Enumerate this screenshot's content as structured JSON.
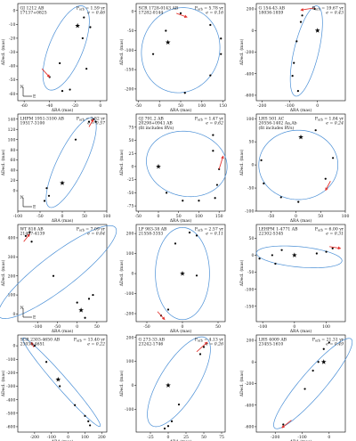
{
  "compass": {
    "north": "N",
    "east": "E"
  },
  "colors": {
    "orbit": "#4a8fd6",
    "arrow": "#e3342f",
    "point": "#000000",
    "frame": "#000000"
  },
  "chart_data": [
    {
      "type": "scatter",
      "title": "",
      "name_lines": [
        "GJ 1212 AB",
        "17137+0825"
      ],
      "period": "1.59 yr",
      "ecc": "0.46",
      "xlabel": "ΔRA (mas)",
      "ylabel": "ΔDecl. (mas)",
      "xlim": [
        -65,
        5
      ],
      "ylim": [
        -65,
        5
      ],
      "xticks": [
        -60,
        -40,
        -20,
        0
      ],
      "yticks": [
        0,
        -10,
        -20,
        -30,
        -40,
        -50,
        -60
      ],
      "ellipse": {
        "cx": -27,
        "cy": -27,
        "a": 33,
        "b": 13,
        "angle": 65
      },
      "points": [
        [
          -13,
          -5
        ],
        [
          -8,
          -12
        ],
        [
          -14,
          -20
        ],
        [
          -32,
          -38
        ],
        [
          -40,
          -48
        ],
        [
          -30,
          -58
        ],
        [
          -24,
          -57
        ],
        [
          -11,
          -42
        ]
      ],
      "star": [
        -18,
        -11
      ],
      "has_compass": true,
      "arrow": [
        [
          -46,
          -42
        ],
        [
          -40,
          -48
        ]
      ],
      "has_fit_note": false
    },
    {
      "type": "scatter",
      "title": "",
      "name_lines": [
        "SCR 1728-0143 AB",
        "17282-0144"
      ],
      "period": "5.78 yr",
      "ecc": "0.16",
      "xlabel": "ΔRA (mas)",
      "ylabel": "ΔDecl. (mas)",
      "xlim": [
        -55,
        155
      ],
      "ylim": [
        -230,
        20
      ],
      "xticks": [
        -50,
        0,
        50,
        100,
        150
      ],
      "yticks": [
        0,
        -50,
        -100,
        -150,
        -200
      ],
      "ellipse": {
        "cx": 50,
        "cy": -100,
        "a": 110,
        "b": 92,
        "angle": 80
      },
      "points": [
        [
          15,
          -50
        ],
        [
          50,
          -5
        ],
        [
          120,
          -35
        ],
        [
          145,
          -70
        ],
        [
          145,
          -110
        ],
        [
          120,
          -165
        ],
        [
          60,
          -210
        ],
        [
          -15,
          -110
        ]
      ],
      "star": [
        20,
        -80
      ],
      "has_compass": false,
      "arrow": [
        [
          40,
          -5
        ],
        [
          65,
          -15
        ]
      ],
      "has_fit_note": false
    },
    {
      "type": "scatter",
      "title": "",
      "name_lines": [
        "G 154-43 AB",
        "18036-1859"
      ],
      "period": "19.67 yr",
      "ecc": "0.43",
      "xlabel": "ΔRA (mas)",
      "ylabel": "ΔDecl. (mas)",
      "xlim": [
        -220,
        100
      ],
      "ylim": [
        -650,
        250
      ],
      "xticks": [
        -200,
        -100,
        0
      ],
      "yticks": [
        200,
        0,
        -200,
        -400,
        -600
      ],
      "ellipse": {
        "cx": -40,
        "cy": -190,
        "a": 420,
        "b": 45,
        "angle": 85
      },
      "points": [
        [
          -10,
          200
        ],
        [
          -55,
          140
        ],
        [
          -60,
          80
        ],
        [
          -75,
          -100
        ],
        [
          -85,
          -300
        ],
        [
          -90,
          -420
        ],
        [
          -70,
          -560
        ]
      ],
      "star": [
        0,
        0
      ],
      "has_compass": false,
      "arrow": [
        [
          -10,
          210
        ],
        [
          -60,
          190
        ]
      ],
      "has_fit_note": false
    },
    {
      "type": "scatter",
      "title": "",
      "name_lines": [
        "LHPM 1951-3100 AB",
        "19517-3100"
      ],
      "period": "2.82 yr",
      "ecc": "0.57",
      "xlabel": "ΔRA (mas)",
      "ylabel": "ΔDecl. (mas)",
      "xlim": [
        -100,
        100
      ],
      "ylim": [
        -40,
        150
      ],
      "xticks": [
        -100,
        -50,
        0,
        50,
        100
      ],
      "yticks": [
        0,
        20,
        40,
        60,
        80,
        100,
        120,
        140
      ],
      "ellipse": {
        "cx": 20,
        "cy": 55,
        "a": 100,
        "b": 30,
        "angle": 60
      },
      "points": [
        [
          -40,
          -20
        ],
        [
          -30,
          -10
        ],
        [
          -35,
          5
        ],
        [
          30,
          100
        ],
        [
          60,
          135
        ],
        [
          70,
          140
        ],
        [
          75,
          135
        ]
      ],
      "star": [
        0,
        15
      ],
      "has_compass": true,
      "arrow": [
        [
          60,
          125
        ],
        [
          70,
          140
        ]
      ],
      "has_fit_note": false
    },
    {
      "type": "scatter",
      "title": "",
      "name_lines": [
        "GJ 791.2 AB",
        "20298+0941 AB",
        "(fit includes RVs)"
      ],
      "period": "1.47 yr",
      "ecc": "0.62",
      "xlabel": "ΔRA (mas)",
      "ylabel": "ΔDecl. (mas)",
      "xlim": [
        -55,
        165
      ],
      "ylim": [
        -85,
        100
      ],
      "xticks": [
        -50,
        0,
        50,
        100,
        150
      ],
      "yticks": [
        75,
        50,
        25,
        0,
        -25,
        -50,
        -75
      ],
      "ellipse": {
        "cx": 70,
        "cy": 5,
        "a": 100,
        "b": 62,
        "angle": -5
      },
      "points": [
        [
          135,
          60
        ],
        [
          135,
          30
        ],
        [
          150,
          -5
        ],
        [
          145,
          -35
        ],
        [
          140,
          -60
        ],
        [
          100,
          -65
        ],
        [
          60,
          -65
        ],
        [
          20,
          -50
        ]
      ],
      "star": [
        0,
        0
      ],
      "has_compass": false,
      "arrow": [
        [
          150,
          -5
        ],
        [
          160,
          20
        ]
      ],
      "has_fit_note": true
    },
    {
      "type": "scatter",
      "title": "",
      "name_lines": [
        "LHS 501 AC",
        "20556-1402 Aa,Ab",
        "(fit includes RVs)"
      ],
      "period": "1.84 yr",
      "ecc": "0.24",
      "xlabel": "ΔRA (mas)",
      "ylabel": "ΔDecl. (mas)",
      "xlim": [
        -80,
        100
      ],
      "ylim": [
        -100,
        110
      ],
      "xticks": [
        -50,
        0,
        50,
        100
      ],
      "yticks": [
        100,
        50,
        0,
        -50,
        -100
      ],
      "ellipse": {
        "cx": 5,
        "cy": 0,
        "a": 80,
        "b": 75,
        "angle": 0
      },
      "points": [
        [
          -70,
          10
        ],
        [
          -65,
          -40
        ],
        [
          -30,
          -70
        ],
        [
          5,
          -80
        ],
        [
          60,
          -30
        ],
        [
          75,
          15
        ],
        [
          40,
          75
        ]
      ],
      "star": [
        10,
        60
      ],
      "has_compass": false,
      "arrow": [
        [
          70,
          -35
        ],
        [
          60,
          -55
        ]
      ],
      "has_fit_note": false
    },
    {
      "type": "scatter",
      "title": "",
      "name_lines": [
        "WT 818 AB",
        "21497-4139"
      ],
      "period": "7.09 yr",
      "ecc": "0.64",
      "xlabel": "ΔRA (mas)",
      "ylabel": "ΔDecl. (mas)",
      "xlim": [
        -150,
        75
      ],
      "ylim": [
        -40,
        470
      ],
      "xticks": [
        -100,
        -50,
        0,
        50
      ],
      "yticks": [
        0,
        100,
        200,
        300,
        400
      ],
      "ellipse": {
        "cx": -50,
        "cy": 220,
        "a": 280,
        "b": 60,
        "angle": 60
      },
      "points": [
        [
          -120,
          430
        ],
        [
          -130,
          410
        ],
        [
          -115,
          380
        ],
        [
          -60,
          200
        ],
        [
          0,
          60
        ],
        [
          30,
          80
        ],
        [
          40,
          100
        ],
        [
          20,
          -20
        ]
      ],
      "star": [
        10,
        20
      ],
      "has_compass": true,
      "arrow": [
        [
          -135,
          380
        ],
        [
          -120,
          420
        ]
      ],
      "has_fit_note": false
    },
    {
      "type": "scatter",
      "title": "",
      "name_lines": [
        "LP 983-38 AB",
        "21558-3353"
      ],
      "period": "2.57 yr",
      "ecc": "0.11",
      "xlabel": "ΔRA (mas)",
      "ylabel": "ΔDecl. (mas)",
      "xlim": [
        -65,
        60
      ],
      "ylim": [
        -240,
        245
      ],
      "xticks": [
        -50,
        0,
        50
      ],
      "yticks": [
        200,
        100,
        0,
        -100,
        -200
      ],
      "ellipse": {
        "cx": 0,
        "cy": 0,
        "a": 230,
        "b": 38,
        "angle": 90
      },
      "points": [
        [
          20,
          -10
        ],
        [
          -10,
          150
        ],
        [
          20,
          190
        ],
        [
          10,
          205
        ],
        [
          -20,
          -180
        ],
        [
          -30,
          -210
        ]
      ],
      "star": [
        0,
        0
      ],
      "has_compass": false,
      "arrow": [
        [
          -35,
          -190
        ],
        [
          -25,
          -230
        ]
      ],
      "has_fit_note": false
    },
    {
      "type": "scatter",
      "title": "",
      "name_lines": [
        "LEHPM 1-4771 AB",
        "22302-5345"
      ],
      "period": "6.00 yr",
      "ecc": "0.31",
      "xlabel": "ΔRA (mas)",
      "ylabel": "ΔDecl. (mas)",
      "xlim": [
        -120,
        160
      ],
      "ylim": [
        -195,
        90
      ],
      "xticks": [
        -100,
        0,
        100
      ],
      "yticks": [
        50,
        0,
        -50,
        -100,
        -150
      ],
      "ellipse": {
        "cx": 15,
        "cy": -5,
        "a": 135,
        "b": 30,
        "angle": -5
      },
      "points": [
        [
          120,
          20
        ],
        [
          100,
          10
        ],
        [
          70,
          5
        ],
        [
          -40,
          15
        ],
        [
          -70,
          0
        ],
        [
          -110,
          -10
        ],
        [
          -60,
          -25
        ]
      ],
      "star": [
        0,
        0
      ],
      "has_compass": false,
      "arrow": [
        [
          110,
          25
        ],
        [
          145,
          20
        ]
      ],
      "has_fit_note": false
    },
    {
      "type": "scatter",
      "title": "",
      "name_lines": [
        "SCR 2303-4650 AB",
        "23036-4651"
      ],
      "period": "13.40 yr",
      "ecc": "0.22",
      "xlabel": "ΔRA (mas)",
      "ylabel": "ΔDecl. (mas)",
      "xlim": [
        -300,
        230
      ],
      "ylim": [
        -640,
        80
      ],
      "xticks": [
        -200,
        -100,
        0,
        100,
        200
      ],
      "yticks": [
        0,
        -100,
        -200,
        -300,
        -400,
        -500,
        -600
      ],
      "ellipse": {
        "cx": -40,
        "cy": -270,
        "a": 400,
        "b": 38,
        "angle": -55
      },
      "points": [
        [
          -200,
          0
        ],
        [
          -130,
          -120
        ],
        [
          -50,
          -300
        ],
        [
          40,
          -440
        ],
        [
          100,
          -520
        ],
        [
          120,
          -560
        ],
        [
          130,
          -590
        ]
      ],
      "star": [
        -60,
        -250
      ],
      "has_compass": false,
      "arrow": [
        [
          -205,
          -10
        ],
        [
          -220,
          25
        ]
      ],
      "has_fit_note": false
    },
    {
      "type": "scatter",
      "title": "",
      "name_lines": [
        "G 273-33 AB",
        "23242-1746"
      ],
      "period": "4.13 yr",
      "ecc": "0.26",
      "xlabel": "ΔRA (mas)",
      "ylabel": "ΔDecl. (mas)",
      "xlim": [
        -45,
        80
      ],
      "ylim": [
        -195,
        210
      ],
      "xticks": [
        -25,
        0,
        25,
        50,
        75
      ],
      "yticks": [
        200,
        100,
        0,
        -100
      ],
      "ellipse": {
        "cx": 15,
        "cy": 15,
        "a": 190,
        "b": 30,
        "angle": 80
      },
      "points": [
        [
          50,
          160
        ],
        [
          45,
          130
        ],
        [
          15,
          -80
        ],
        [
          5,
          -150
        ],
        [
          0,
          -170
        ],
        [
          -5,
          -180
        ]
      ],
      "star": [
        0,
        0
      ],
      "has_compass": false,
      "arrow": [
        [
          40,
          140
        ],
        [
          55,
          180
        ]
      ],
      "has_fit_note": false
    },
    {
      "type": "scatter",
      "title": "",
      "name_lines": [
        "LHS 4009 AB",
        "23455-1610"
      ],
      "period": "21.31 yr",
      "ecc": "0.49",
      "xlabel": "ΔRA (mas)",
      "ylabel": "ΔDecl. (mas)",
      "xlim": [
        -270,
        60
      ],
      "ylim": [
        -650,
        250
      ],
      "xticks": [
        -200,
        -100,
        0
      ],
      "yticks": [
        200,
        0,
        -200,
        -400,
        -600
      ],
      "ellipse": {
        "cx": -60,
        "cy": -200,
        "a": 440,
        "b": 55,
        "angle": 72
      },
      "points": [
        [
          0,
          180
        ],
        [
          -20,
          120
        ],
        [
          -40,
          0
        ],
        [
          -60,
          -80
        ],
        [
          -90,
          -250
        ],
        [
          -170,
          -580
        ]
      ],
      "star": [
        -20,
        0
      ],
      "has_compass": false,
      "arrow": [
        [
          -140,
          -540
        ],
        [
          -175,
          -610
        ]
      ],
      "has_fit_note": false
    }
  ]
}
